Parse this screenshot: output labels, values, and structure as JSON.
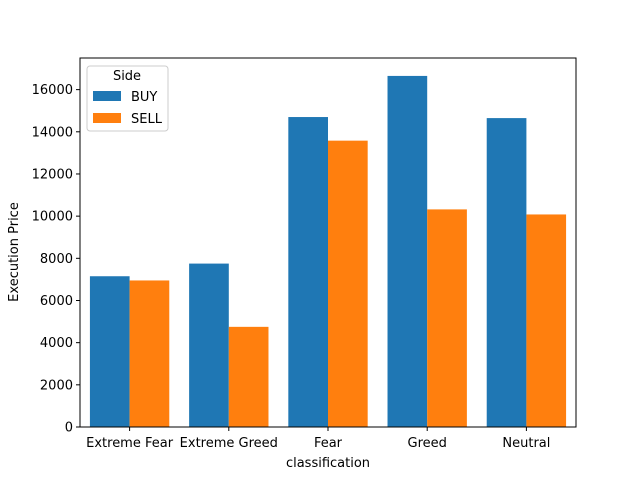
{
  "chart_data": {
    "type": "bar",
    "title": "",
    "xlabel": "classification",
    "ylabel": "Execution Price",
    "categories": [
      "Extreme Fear",
      "Extreme Greed",
      "Fear",
      "Greed",
      "Neutral"
    ],
    "series": [
      {
        "name": "BUY",
        "color": "#1f77b4",
        "values": [
          7150,
          7750,
          14700,
          16650,
          14650
        ]
      },
      {
        "name": "SELL",
        "color": "#ff7f0e",
        "values": [
          6950,
          4750,
          13580,
          10320,
          10080
        ]
      }
    ],
    "ylim": [
      0,
      17500
    ],
    "yticks": [
      0,
      2000,
      4000,
      6000,
      8000,
      10000,
      12000,
      14000,
      16000
    ],
    "legend": {
      "title": "Side",
      "placement": "top-left"
    },
    "grid": false
  }
}
